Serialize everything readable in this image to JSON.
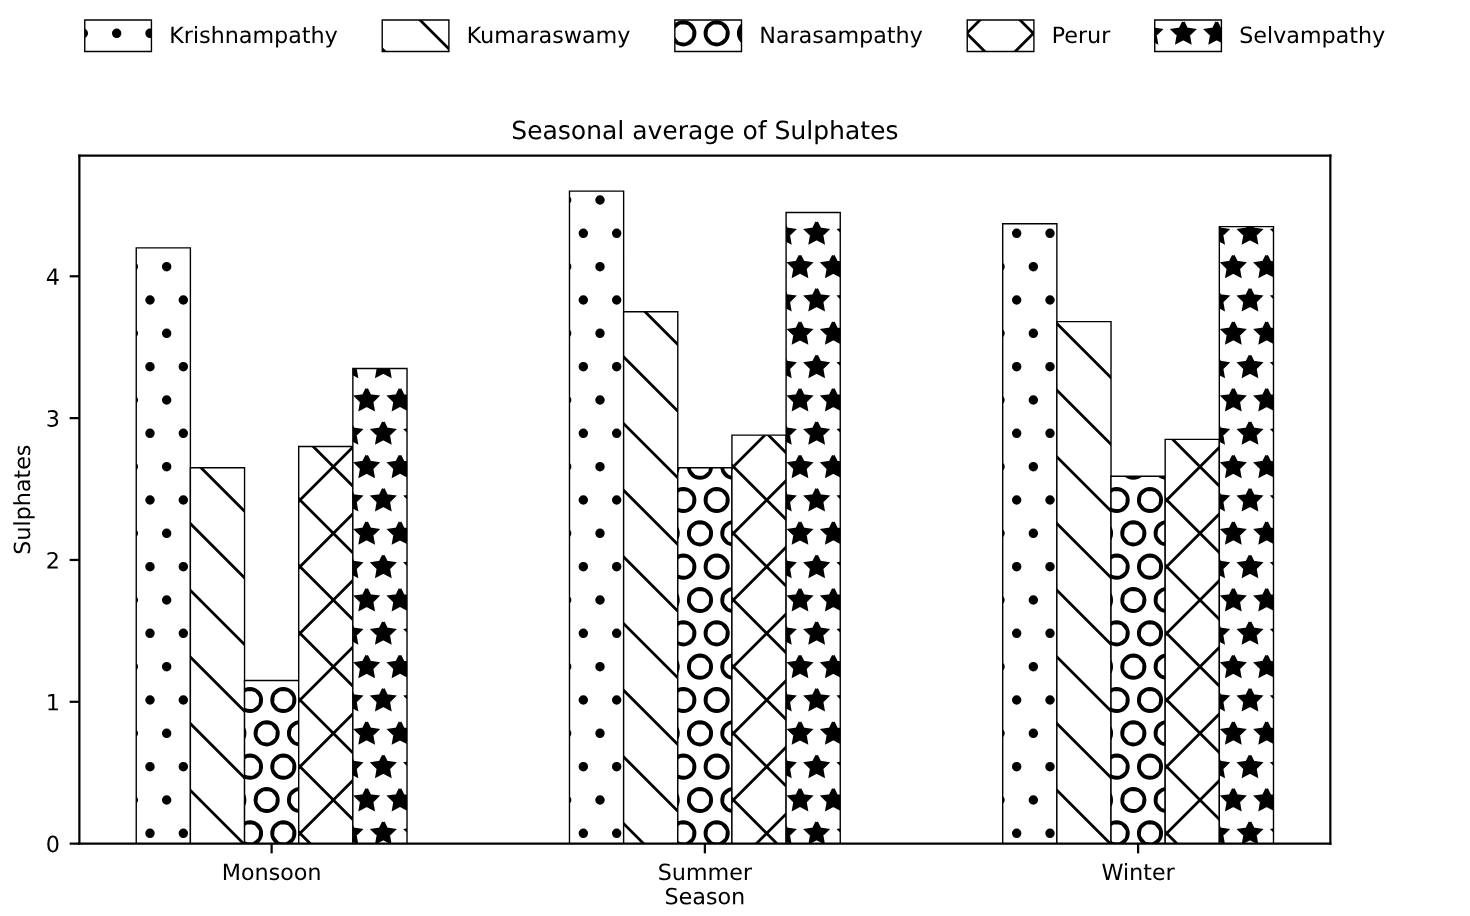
{
  "chart_data": {
    "type": "bar",
    "title": "Seasonal average of Sulphates",
    "xlabel": "Season",
    "ylabel": "Sulphates",
    "categories": [
      "Monsoon",
      "Summer",
      "Winter"
    ],
    "series": [
      {
        "name": "Krishnampathy",
        "color": "#000000",
        "values": [
          4.2,
          4.6,
          4.37
        ]
      },
      {
        "name": "Kumaraswamy",
        "color": "#000000",
        "values": [
          2.65,
          3.75,
          3.68
        ]
      },
      {
        "name": "Narasampathy",
        "color": "#000000",
        "values": [
          1.15,
          2.65,
          2.59
        ]
      },
      {
        "name": "Perur",
        "color": "#000000",
        "values": [
          2.8,
          2.88,
          2.85
        ]
      },
      {
        "name": "Selvampathy",
        "color": "#000000",
        "values": [
          3.35,
          4.45,
          4.35
        ]
      }
    ],
    "ylim": [
      0,
      4.85
    ],
    "yticks": [
      0,
      1,
      2,
      3,
      4
    ],
    "grid": false,
    "legend": "top"
  }
}
